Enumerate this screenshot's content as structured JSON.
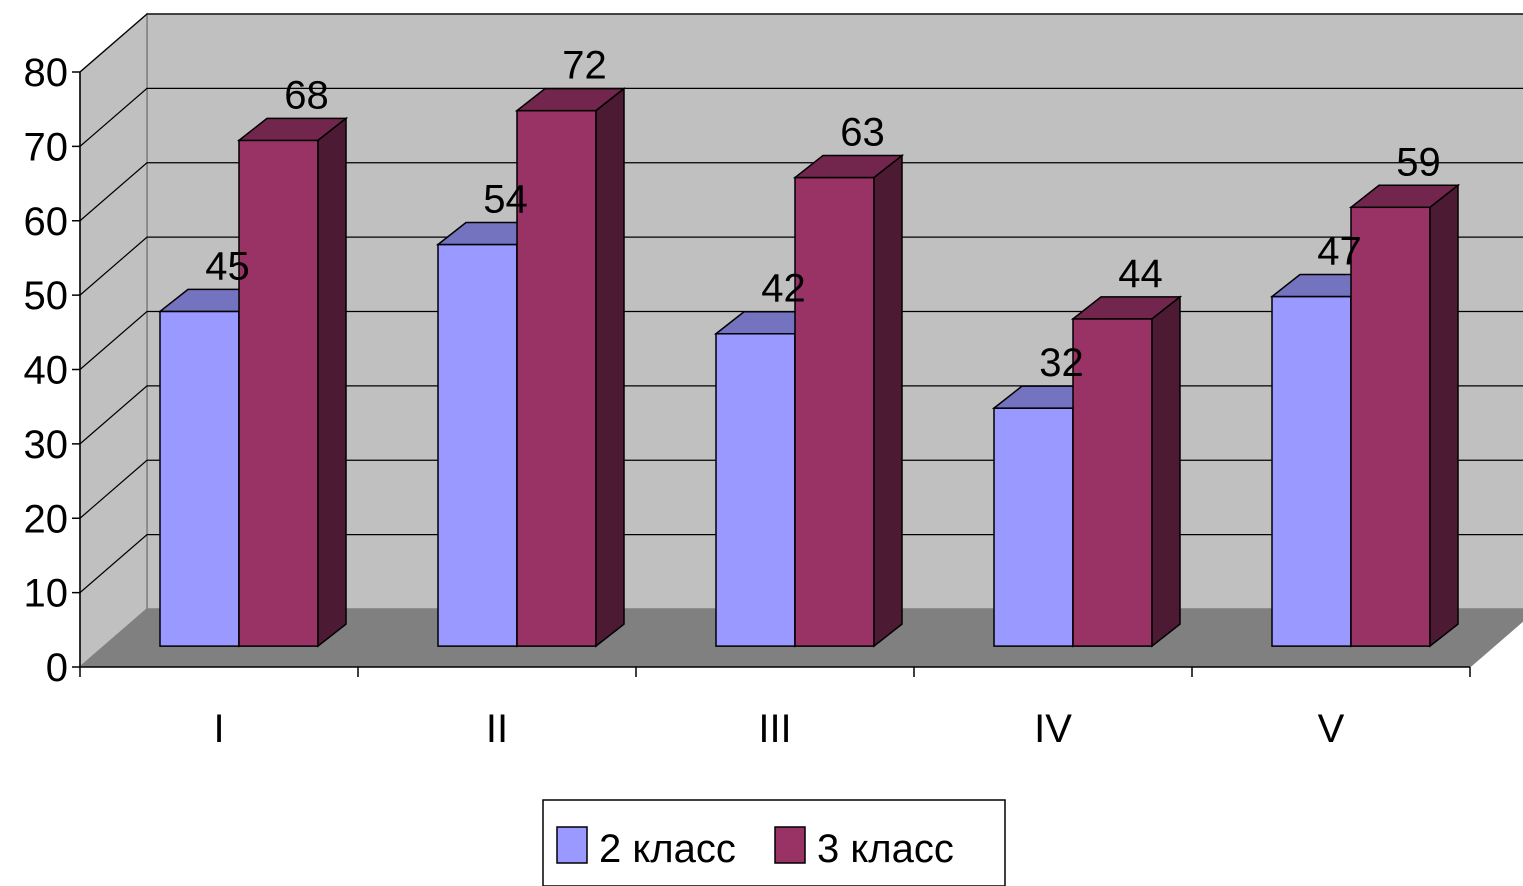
{
  "chart_data": {
    "type": "bar",
    "three_d": true,
    "categories": [
      "I",
      "II",
      "III",
      "IV",
      "V"
    ],
    "series": [
      {
        "name": "2 класс",
        "values": [
          45,
          54,
          42,
          32,
          47
        ],
        "color": "#9999ff"
      },
      {
        "name": "3 класс",
        "values": [
          68,
          72,
          63,
          44,
          59
        ],
        "color": "#993366"
      }
    ],
    "yticks": [
      0,
      10,
      20,
      30,
      40,
      50,
      60,
      70,
      80
    ],
    "ylim": [
      0,
      80
    ],
    "grid": true,
    "legend_position": "bottom",
    "colors": {
      "back_wall": "#c0c0c0",
      "floor": "#808080",
      "gridline": "#000000"
    }
  }
}
